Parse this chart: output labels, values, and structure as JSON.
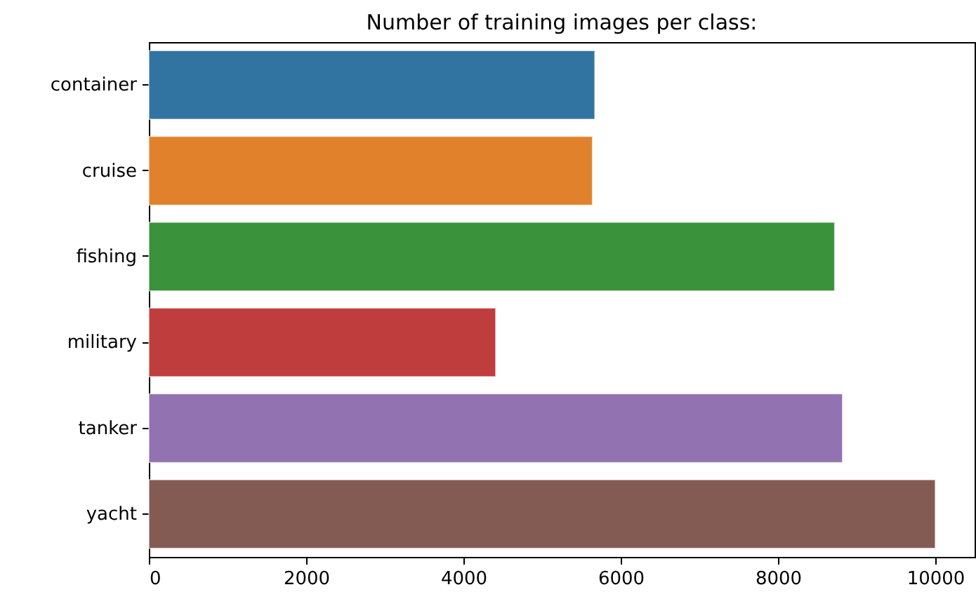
{
  "chart_data": {
    "type": "bar",
    "orientation": "horizontal",
    "title": "Number of training images per class:",
    "categories": [
      "container",
      "cruise",
      "fishing",
      "military",
      "tanker",
      "yacht"
    ],
    "values": [
      5670,
      5640,
      8720,
      4410,
      8820,
      10000
    ],
    "colors": [
      "#3274a1",
      "#e1812c",
      "#3a923a",
      "#c03d3e",
      "#9372b2",
      "#845b53"
    ],
    "xlim": [
      0,
      10500
    ],
    "xticks": [
      0,
      2000,
      4000,
      6000,
      8000,
      10000
    ],
    "grid": false
  }
}
